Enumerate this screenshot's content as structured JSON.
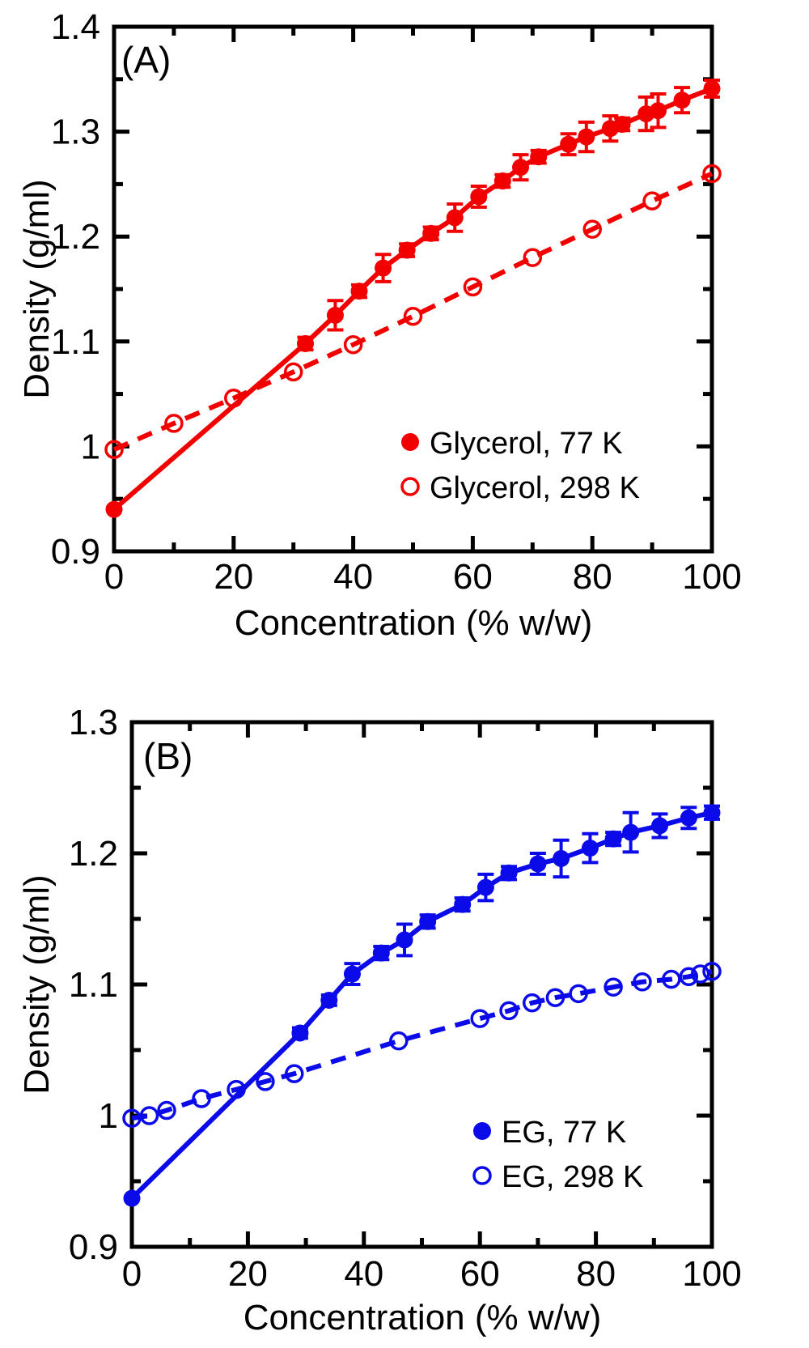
{
  "figure": {
    "background": "#ffffff",
    "frame_color": "#000000",
    "accent_red": "#f20000",
    "accent_blue": "#0b0bea"
  },
  "chart_data": [
    {
      "panel_label": "(A)",
      "type": "line",
      "title": "",
      "xlabel": "Concentration (% w/w)",
      "ylabel": "Density (g/ml)",
      "xlim": [
        0,
        100
      ],
      "ylim": [
        0.9,
        1.4
      ],
      "x_major_ticks": [
        0,
        20,
        40,
        60,
        80,
        100
      ],
      "x_tick_labels": [
        "0",
        "20",
        "40",
        "60",
        "80",
        "100"
      ],
      "x_minor_ticks": [
        10,
        30,
        50,
        70,
        90
      ],
      "y_major_ticks": [
        0.9,
        1.0,
        1.1,
        1.2,
        1.3,
        1.4
      ],
      "y_tick_labels": [
        "0.9",
        "1",
        "1.1",
        "1.2",
        "1.3",
        "1.4"
      ],
      "y_minor_ticks": [
        0.95,
        1.05,
        1.15,
        1.25,
        1.35
      ],
      "grid": false,
      "color": "#f20000",
      "legend_position": "inside lower-right",
      "series": [
        {
          "name": "Glycerol, 77 K",
          "marker": "filled-circle",
          "line_style": "solid",
          "x": [
            0,
            32,
            37,
            41,
            45,
            49,
            53,
            57,
            61,
            65,
            68,
            71,
            76,
            79,
            83,
            85,
            89,
            91,
            95,
            100
          ],
          "y": [
            0.94,
            1.098,
            1.125,
            1.148,
            1.17,
            1.187,
            1.203,
            1.218,
            1.238,
            1.253,
            1.266,
            1.276,
            1.288,
            1.295,
            1.303,
            1.307,
            1.317,
            1.32,
            1.33,
            1.341
          ],
          "y_err": [
            0,
            0.006,
            0.014,
            0.006,
            0.013,
            0.006,
            0.006,
            0.013,
            0.01,
            0.006,
            0.012,
            0.006,
            0.01,
            0.014,
            0.012,
            0.006,
            0.016,
            0.016,
            0.012,
            0.008
          ]
        },
        {
          "name": "Glycerol, 298 K",
          "marker": "open-circle",
          "line_style": "dashed",
          "x": [
            0,
            10,
            20,
            30,
            40,
            50,
            60,
            70,
            80,
            90,
            100
          ],
          "y": [
            0.997,
            1.022,
            1.046,
            1.071,
            1.097,
            1.124,
            1.152,
            1.18,
            1.207,
            1.234,
            1.26
          ],
          "y_err": [
            0,
            0,
            0,
            0,
            0,
            0,
            0,
            0,
            0,
            0,
            0
          ]
        }
      ]
    },
    {
      "panel_label": "(B)",
      "type": "line",
      "title": "",
      "xlabel": "Concentration (% w/w)",
      "ylabel": "Density (g/ml)",
      "xlim": [
        0,
        100
      ],
      "ylim": [
        0.9,
        1.3
      ],
      "x_major_ticks": [
        0,
        20,
        40,
        60,
        80,
        100
      ],
      "x_tick_labels": [
        "0",
        "20",
        "40",
        "60",
        "80",
        "100"
      ],
      "x_minor_ticks": [
        10,
        30,
        50,
        70,
        90
      ],
      "y_major_ticks": [
        0.9,
        1.0,
        1.1,
        1.2,
        1.3
      ],
      "y_tick_labels": [
        "0.9",
        "1",
        "1.1",
        "1.2",
        "1.3"
      ],
      "y_minor_ticks": [
        0.95,
        1.05,
        1.15,
        1.25
      ],
      "grid": false,
      "color": "#0b0bea",
      "legend_position": "inside lower-right",
      "series": [
        {
          "name": "EG, 77 K",
          "marker": "filled-circle",
          "line_style": "solid",
          "x": [
            0,
            29,
            34,
            38,
            43,
            47,
            51,
            57,
            61,
            65,
            70,
            74,
            79,
            83,
            86,
            91,
            96,
            100
          ],
          "y": [
            0.937,
            1.063,
            1.088,
            1.108,
            1.124,
            1.134,
            1.148,
            1.161,
            1.174,
            1.185,
            1.192,
            1.196,
            1.204,
            1.211,
            1.216,
            1.221,
            1.227,
            1.231
          ],
          "y_err": [
            0,
            0.004,
            0.004,
            0.008,
            0.005,
            0.012,
            0.005,
            0.005,
            0.01,
            0.005,
            0.008,
            0.014,
            0.011,
            0.005,
            0.015,
            0.009,
            0.008,
            0.005
          ]
        },
        {
          "name": "EG, 298 K",
          "marker": "open-circle",
          "line_style": "dashed",
          "x": [
            0,
            3,
            6,
            12,
            18,
            23,
            28,
            46,
            60,
            65,
            69,
            73,
            77,
            83,
            88,
            93,
            96,
            98,
            100
          ],
          "y": [
            0.998,
            1.0,
            1.004,
            1.013,
            1.02,
            1.026,
            1.032,
            1.057,
            1.074,
            1.08,
            1.086,
            1.09,
            1.093,
            1.098,
            1.102,
            1.104,
            1.106,
            1.108,
            1.11
          ],
          "y_err": [
            0,
            0,
            0,
            0,
            0,
            0,
            0,
            0,
            0,
            0,
            0,
            0,
            0,
            0,
            0,
            0,
            0,
            0,
            0
          ]
        }
      ]
    }
  ]
}
